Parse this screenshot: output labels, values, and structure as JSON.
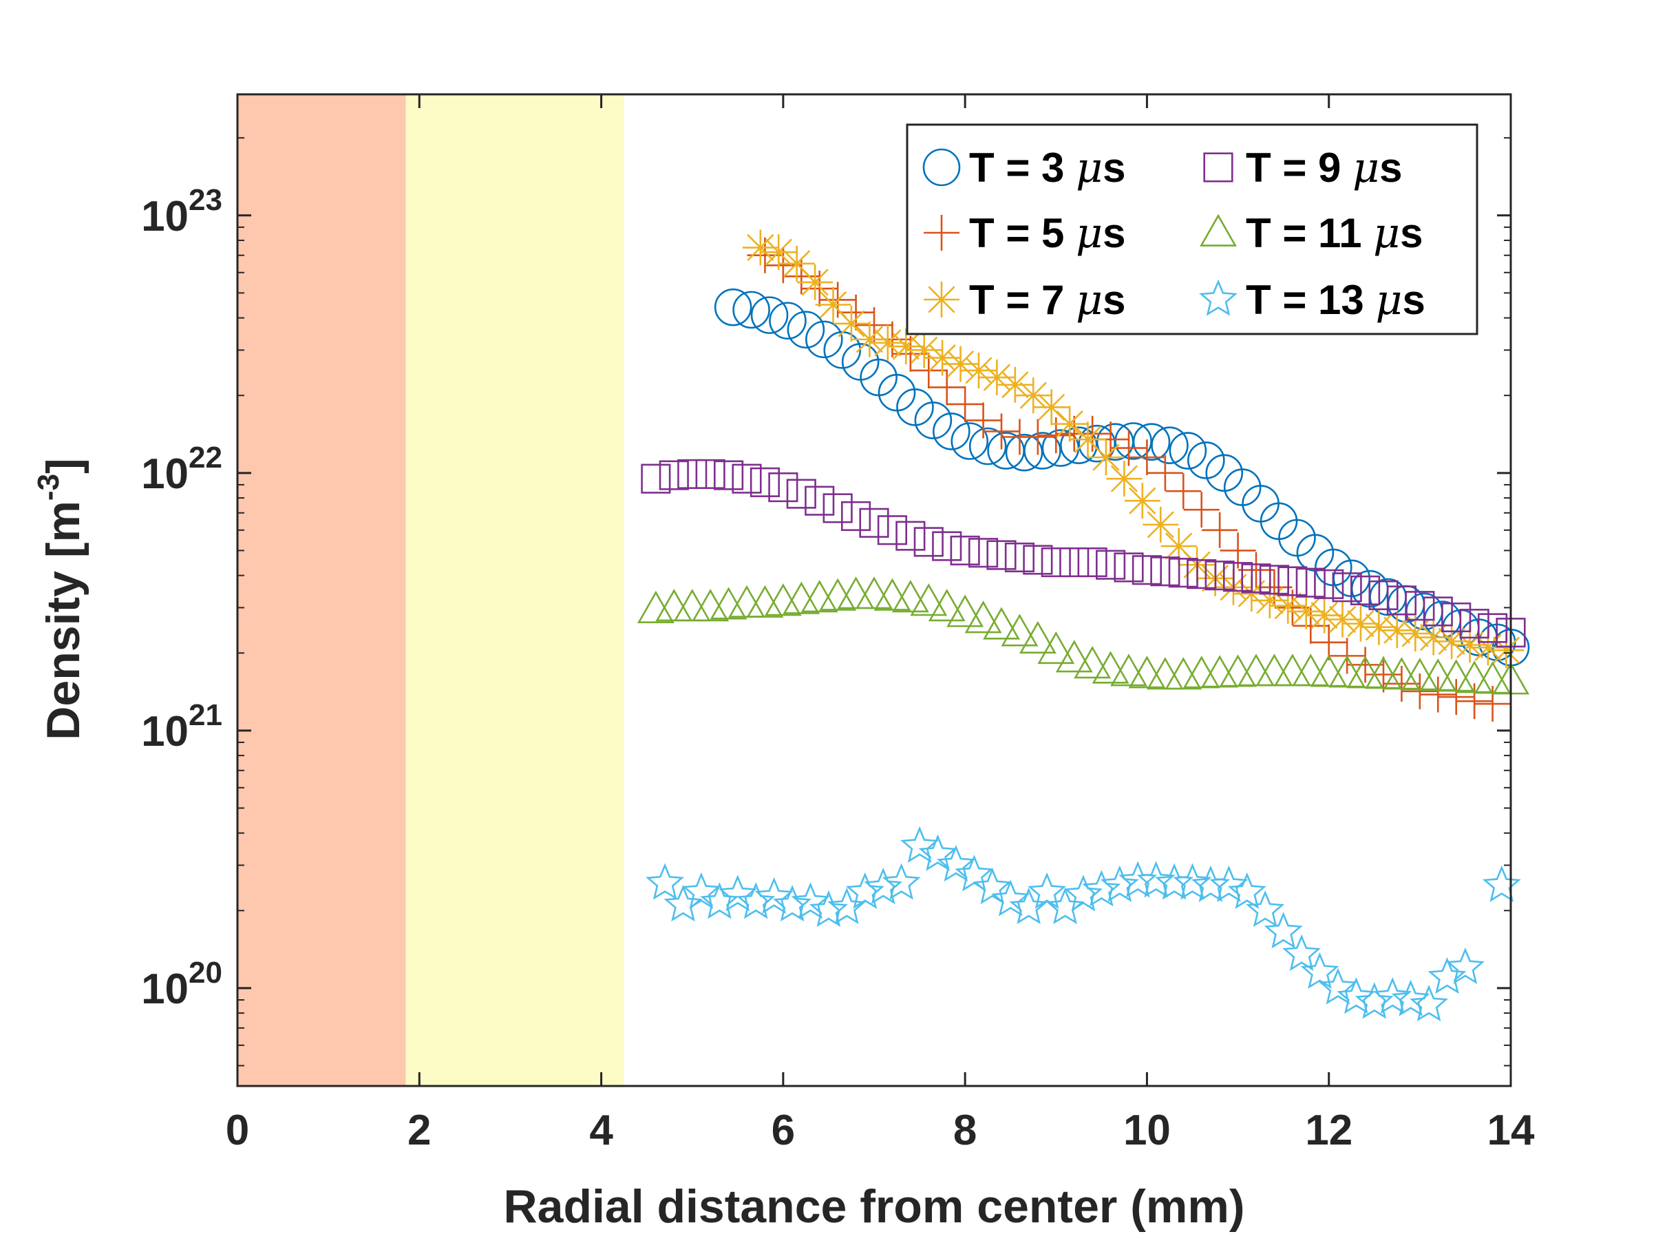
{
  "chart_data": {
    "type": "scatter",
    "xlabel": "Radial distance from center (mm)",
    "ylabel": "Density [m",
    "ylabel_exponent": "-3",
    "ylabel_close": "]",
    "xlim": [
      0,
      14
    ],
    "ylim_log10": [
      19.62,
      23.47
    ],
    "x_scale": "linear",
    "y_scale": "log",
    "xticks": [
      0,
      2,
      4,
      6,
      8,
      10,
      12,
      14
    ],
    "xtick_labels": [
      "0",
      "2",
      "4",
      "6",
      "8",
      "10",
      "12",
      "14"
    ],
    "yticks": [
      {
        "base": "10",
        "exponent": "20",
        "log10": 20
      },
      {
        "base": "10",
        "exponent": "21",
        "log10": 21
      },
      {
        "base": "10",
        "exponent": "22",
        "log10": 22
      },
      {
        "base": "10",
        "exponent": "23",
        "log10": 23
      }
    ],
    "regions": [
      {
        "name": "inner-region",
        "x_start": 0,
        "x_end": 1.85,
        "color": "#fdc8ae"
      },
      {
        "name": "middle-region",
        "x_start": 1.85,
        "x_end": 4.25,
        "color": "#fdfcc6"
      }
    ],
    "legend": {
      "position": "top-right",
      "columns": 2
    },
    "series": [
      {
        "name": "T = 3",
        "unit_mu": "μ",
        "unit_s": "s",
        "marker": "circle",
        "color": "#0072bd",
        "points": [
          [
            5.45,
            4.4e+22
          ],
          [
            5.65,
            4.3e+22
          ],
          [
            5.85,
            4.1e+22
          ],
          [
            6.05,
            3.9e+22
          ],
          [
            6.25,
            3.6e+22
          ],
          [
            6.45,
            3.3e+22
          ],
          [
            6.65,
            3e+22
          ],
          [
            6.85,
            2.7e+22
          ],
          [
            7.05,
            2.35e+22
          ],
          [
            7.25,
            2.05e+22
          ],
          [
            7.45,
            1.8e+22
          ],
          [
            7.65,
            1.6e+22
          ],
          [
            7.85,
            1.45e+22
          ],
          [
            8.05,
            1.33e+22
          ],
          [
            8.25,
            1.27e+22
          ],
          [
            8.45,
            1.22e+22
          ],
          [
            8.65,
            1.2e+22
          ],
          [
            8.85,
            1.22e+22
          ],
          [
            9.05,
            1.25e+22
          ],
          [
            9.25,
            1.28e+22
          ],
          [
            9.45,
            1.3e+22
          ],
          [
            9.65,
            1.32e+22
          ],
          [
            9.85,
            1.33e+22
          ],
          [
            10.05,
            1.32e+22
          ],
          [
            10.25,
            1.28e+22
          ],
          [
            10.45,
            1.22e+22
          ],
          [
            10.65,
            1.12e+22
          ],
          [
            10.85,
            1e+22
          ],
          [
            11.05,
            8.8e+21
          ],
          [
            11.25,
            7.6e+21
          ],
          [
            11.45,
            6.5e+21
          ],
          [
            11.65,
            5.6e+21
          ],
          [
            11.85,
            4.9e+21
          ],
          [
            12.05,
            4.3e+21
          ],
          [
            12.25,
            3.9e+21
          ],
          [
            12.45,
            3.55e+21
          ],
          [
            12.65,
            3.3e+21
          ],
          [
            12.85,
            3.1e+21
          ],
          [
            13.05,
            2.9e+21
          ],
          [
            13.25,
            2.7e+21
          ],
          [
            13.45,
            2.5e+21
          ],
          [
            13.65,
            2.3e+21
          ],
          [
            13.85,
            2.2e+21
          ],
          [
            14.0,
            2.1e+21
          ]
        ]
      },
      {
        "name": "T = 5",
        "unit_mu": "μ",
        "unit_s": "s",
        "marker": "plus",
        "color": "#d95319",
        "points": [
          [
            5.8,
            7e+22
          ],
          [
            6.0,
            6.4e+22
          ],
          [
            6.2,
            5.8e+22
          ],
          [
            6.4,
            5.2e+22
          ],
          [
            6.6,
            4.7e+22
          ],
          [
            6.8,
            4.2e+22
          ],
          [
            7.0,
            3.75e+22
          ],
          [
            7.2,
            3.3e+22
          ],
          [
            7.4,
            2.9e+22
          ],
          [
            7.6,
            2.5e+22
          ],
          [
            7.8,
            2.15e+22
          ],
          [
            8.0,
            1.85e+22
          ],
          [
            8.2,
            1.6e+22
          ],
          [
            8.4,
            1.45e+22
          ],
          [
            8.6,
            1.38e+22
          ],
          [
            8.8,
            1.38e+22
          ],
          [
            9.0,
            1.4e+22
          ],
          [
            9.2,
            1.42e+22
          ],
          [
            9.4,
            1.42e+22
          ],
          [
            9.6,
            1.35e+22
          ],
          [
            9.8,
            1.25e+22
          ],
          [
            10.0,
            1.15e+22
          ],
          [
            10.2,
            1e+22
          ],
          [
            10.4,
            8.5e+21
          ],
          [
            10.6,
            7.2e+21
          ],
          [
            10.8,
            6e+21
          ],
          [
            11.0,
            5e+21
          ],
          [
            11.2,
            4.2e+21
          ],
          [
            11.4,
            3.6e+21
          ],
          [
            11.6,
            3e+21
          ],
          [
            11.8,
            2.55e+21
          ],
          [
            12.0,
            2.2e+21
          ],
          [
            12.2,
            1.95e+21
          ],
          [
            12.4,
            1.8e+21
          ],
          [
            12.6,
            1.65e+21
          ],
          [
            12.8,
            1.52e+21
          ],
          [
            13.0,
            1.42e+21
          ],
          [
            13.2,
            1.38e+21
          ],
          [
            13.4,
            1.35e+21
          ],
          [
            13.6,
            1.3e+21
          ],
          [
            13.8,
            1.27e+21
          ]
        ]
      },
      {
        "name": "T = 7",
        "unit_mu": "μ",
        "unit_s": "s",
        "marker": "asterisk",
        "color": "#edb120",
        "points": [
          [
            5.75,
            7.5e+22
          ],
          [
            5.95,
            7.2e+22
          ],
          [
            6.15,
            6.5e+22
          ],
          [
            6.35,
            5.5e+22
          ],
          [
            6.55,
            4.5e+22
          ],
          [
            6.75,
            3.8e+22
          ],
          [
            6.95,
            3.3e+22
          ],
          [
            7.15,
            3.2e+22
          ],
          [
            7.35,
            3.1e+22
          ],
          [
            7.55,
            3e+22
          ],
          [
            7.75,
            2.8e+22
          ],
          [
            7.95,
            2.65e+22
          ],
          [
            8.15,
            2.5e+22
          ],
          [
            8.35,
            2.35e+22
          ],
          [
            8.55,
            2.2e+22
          ],
          [
            8.75,
            2e+22
          ],
          [
            8.95,
            1.8e+22
          ],
          [
            9.15,
            1.55e+22
          ],
          [
            9.35,
            1.35e+22
          ],
          [
            9.55,
            1.15e+22
          ],
          [
            9.75,
            9.5e+21
          ],
          [
            9.95,
            7.8e+21
          ],
          [
            10.15,
            6.3e+21
          ],
          [
            10.35,
            5.2e+21
          ],
          [
            10.55,
            4.4e+21
          ],
          [
            10.75,
            3.9e+21
          ],
          [
            10.95,
            3.6e+21
          ],
          [
            11.15,
            3.4e+21
          ],
          [
            11.35,
            3.2e+21
          ],
          [
            11.55,
            3.05e+21
          ],
          [
            11.75,
            2.9e+21
          ],
          [
            11.95,
            2.8e+21
          ],
          [
            12.15,
            2.7e+21
          ],
          [
            12.35,
            2.6e+21
          ],
          [
            12.55,
            2.52e+21
          ],
          [
            12.75,
            2.45e+21
          ],
          [
            12.95,
            2.38e+21
          ],
          [
            13.15,
            2.3e+21
          ],
          [
            13.35,
            2.22e+21
          ],
          [
            13.55,
            2.15e+21
          ],
          [
            13.75,
            2.1e+21
          ],
          [
            13.95,
            2.05e+21
          ]
        ]
      },
      {
        "name": "T = 9",
        "unit_mu": "μ",
        "unit_s": "s",
        "marker": "square",
        "color": "#7e2f8e",
        "points": [
          [
            4.6,
            9.5e+21
          ],
          [
            4.8,
            9.8e+21
          ],
          [
            5.0,
            9.9e+21
          ],
          [
            5.2,
            9.9e+21
          ],
          [
            5.4,
            9.8e+21
          ],
          [
            5.6,
            9.5e+21
          ],
          [
            5.8,
            9.2e+21
          ],
          [
            6.0,
            8.8e+21
          ],
          [
            6.2,
            8.3e+21
          ],
          [
            6.4,
            7.8e+21
          ],
          [
            6.6,
            7.3e+21
          ],
          [
            6.8,
            6.8e+21
          ],
          [
            7.0,
            6.4e+21
          ],
          [
            7.2,
            6e+21
          ],
          [
            7.4,
            5.7e+21
          ],
          [
            7.6,
            5.4e+21
          ],
          [
            7.8,
            5.2e+21
          ],
          [
            8.0,
            5e+21
          ],
          [
            8.2,
            4.9e+21
          ],
          [
            8.4,
            4.8e+21
          ],
          [
            8.6,
            4.7e+21
          ],
          [
            8.8,
            4.6e+21
          ],
          [
            9.0,
            4.5e+21
          ],
          [
            9.2,
            4.5e+21
          ],
          [
            9.4,
            4.5e+21
          ],
          [
            9.6,
            4.4e+21
          ],
          [
            9.8,
            4.3e+21
          ],
          [
            10.0,
            4.2e+21
          ],
          [
            10.2,
            4.15e+21
          ],
          [
            10.4,
            4.1e+21
          ],
          [
            10.6,
            4.05e+21
          ],
          [
            10.8,
            4e+21
          ],
          [
            11.0,
            3.95e+21
          ],
          [
            11.2,
            3.9e+21
          ],
          [
            11.4,
            3.85e+21
          ],
          [
            11.6,
            3.8e+21
          ],
          [
            11.8,
            3.75e+21
          ],
          [
            12.0,
            3.7e+21
          ],
          [
            12.2,
            3.6e+21
          ],
          [
            12.4,
            3.5e+21
          ],
          [
            12.6,
            3.35e+21
          ],
          [
            12.8,
            3.2e+21
          ],
          [
            13.0,
            3.05e+21
          ],
          [
            13.2,
            2.9e+21
          ],
          [
            13.4,
            2.75e+21
          ],
          [
            13.6,
            2.6e+21
          ],
          [
            13.8,
            2.5e+21
          ],
          [
            14.0,
            2.4e+21
          ]
        ]
      },
      {
        "name": "T = 11",
        "unit_mu": "μ",
        "unit_s": "s",
        "marker": "triangle",
        "color": "#77ac30",
        "points": [
          [
            4.6,
            2.95e+21
          ],
          [
            4.8,
            3e+21
          ],
          [
            5.0,
            3e+21
          ],
          [
            5.2,
            3e+21
          ],
          [
            5.4,
            3.05e+21
          ],
          [
            5.6,
            3.1e+21
          ],
          [
            5.8,
            3.1e+21
          ],
          [
            6.0,
            3.15e+21
          ],
          [
            6.2,
            3.2e+21
          ],
          [
            6.4,
            3.25e+21
          ],
          [
            6.6,
            3.3e+21
          ],
          [
            6.8,
            3.35e+21
          ],
          [
            7.0,
            3.35e+21
          ],
          [
            7.2,
            3.3e+21
          ],
          [
            7.4,
            3.25e+21
          ],
          [
            7.6,
            3.15e+21
          ],
          [
            7.8,
            3e+21
          ],
          [
            8.0,
            2.85e+21
          ],
          [
            8.2,
            2.7e+21
          ],
          [
            8.4,
            2.55e+21
          ],
          [
            8.6,
            2.4e+21
          ],
          [
            8.8,
            2.25e+21
          ],
          [
            9.0,
            2.05e+21
          ],
          [
            9.2,
            1.9e+21
          ],
          [
            9.4,
            1.8e+21
          ],
          [
            9.6,
            1.72e+21
          ],
          [
            9.8,
            1.68e+21
          ],
          [
            10.0,
            1.65e+21
          ],
          [
            10.2,
            1.63e+21
          ],
          [
            10.4,
            1.63e+21
          ],
          [
            10.6,
            1.65e+21
          ],
          [
            10.8,
            1.66e+21
          ],
          [
            11.0,
            1.67e+21
          ],
          [
            11.2,
            1.68e+21
          ],
          [
            11.4,
            1.68e+21
          ],
          [
            11.6,
            1.68e+21
          ],
          [
            11.8,
            1.68e+21
          ],
          [
            12.0,
            1.67e+21
          ],
          [
            12.2,
            1.66e+21
          ],
          [
            12.4,
            1.65e+21
          ],
          [
            12.6,
            1.64e+21
          ],
          [
            12.8,
            1.63e+21
          ],
          [
            13.0,
            1.62e+21
          ],
          [
            13.2,
            1.61e+21
          ],
          [
            13.4,
            1.6e+21
          ],
          [
            13.6,
            1.58e+21
          ],
          [
            13.8,
            1.57e+21
          ],
          [
            14.0,
            1.56e+21
          ]
        ]
      },
      {
        "name": "T = 13",
        "unit_mu": "μ",
        "unit_s": "s",
        "marker": "star",
        "color": "#4dbeee",
        "points": [
          [
            4.7,
            2.55e+20
          ],
          [
            4.9,
            2.1e+20
          ],
          [
            5.1,
            2.35e+20
          ],
          [
            5.3,
            2.15e+20
          ],
          [
            5.5,
            2.3e+20
          ],
          [
            5.7,
            2.15e+20
          ],
          [
            5.9,
            2.25e+20
          ],
          [
            6.1,
            2.1e+20
          ],
          [
            6.3,
            2.15e+20
          ],
          [
            6.5,
            2e+20
          ],
          [
            6.7,
            2.05e+20
          ],
          [
            6.9,
            2.35e+20
          ],
          [
            7.1,
            2.45e+20
          ],
          [
            7.3,
            2.55e+20
          ],
          [
            7.5,
            3.55e+20
          ],
          [
            7.7,
            3.3e+20
          ],
          [
            7.9,
            3e+20
          ],
          [
            8.1,
            2.75e+20
          ],
          [
            8.3,
            2.45e+20
          ],
          [
            8.5,
            2.2e+20
          ],
          [
            8.7,
            2.05e+20
          ],
          [
            8.9,
            2.35e+20
          ],
          [
            9.1,
            2.05e+20
          ],
          [
            9.3,
            2.3e+20
          ],
          [
            9.5,
            2.4e+20
          ],
          [
            9.7,
            2.5e+20
          ],
          [
            9.9,
            2.6e+20
          ],
          [
            10.1,
            2.6e+20
          ],
          [
            10.3,
            2.55e+20
          ],
          [
            10.5,
            2.55e+20
          ],
          [
            10.7,
            2.5e+20
          ],
          [
            10.9,
            2.5e+20
          ],
          [
            11.1,
            2.35e+20
          ],
          [
            11.3,
            2e+20
          ],
          [
            11.5,
            1.65e+20
          ],
          [
            11.7,
            1.35e+20
          ],
          [
            11.9,
            1.15e+20
          ],
          [
            12.1,
            1e+20
          ],
          [
            12.3,
            9.2e+19
          ],
          [
            12.5,
            8.8e+19
          ],
          [
            12.7,
            9.2e+19
          ],
          [
            12.9,
            9e+19
          ],
          [
            13.1,
            8.6e+19
          ],
          [
            13.3,
            1.1e+20
          ],
          [
            13.5,
            1.2e+20
          ],
          [
            13.9,
            2.5e+20
          ]
        ]
      }
    ]
  }
}
